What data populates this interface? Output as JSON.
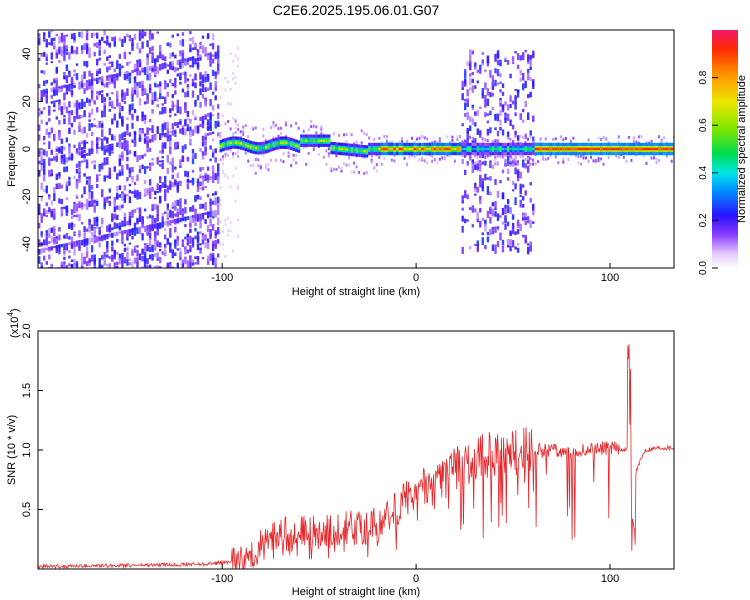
{
  "title": "C2E6.2025.195.06.01.G07",
  "chart_data": [
    {
      "type": "heatmap",
      "xlabel": "Height of straight line (km)",
      "ylabel": "Frequency (Hz)",
      "xlim": [
        -195,
        133
      ],
      "ylim": [
        -50,
        50
      ],
      "x_ticks": [
        -100,
        0,
        100
      ],
      "y_ticks": [
        -40,
        -20,
        0,
        20,
        40
      ],
      "colorbar": {
        "label": "Normalized spectral amplitude",
        "range": [
          0,
          1
        ],
        "ticks": [
          "0.0",
          "0.2",
          "0.4",
          "0.6",
          "0.8"
        ]
      },
      "regions": [
        {
          "x": [
            -195,
            -102
          ],
          "description_freq_spread": [
            -50,
            50
          ],
          "peak_amplitude": 0.25
        },
        {
          "x": [
            -102,
            -20
          ],
          "center_freq": 1,
          "peak_amplitude": 0.65
        },
        {
          "x": [
            -20,
            25
          ],
          "center_freq": 0,
          "peak_amplitude": 0.9
        },
        {
          "x": [
            23,
            60
          ],
          "description_freq_spread": [
            -42,
            40
          ],
          "peak_amplitude": 0.4
        },
        {
          "x": [
            60,
            133
          ],
          "center_freq": 0,
          "peak_amplitude": 0.95
        }
      ]
    },
    {
      "type": "line",
      "xlabel": "Height of straight line (km)",
      "ylabel": "SNR (10 * v/v)",
      "y_multiplier": "(x10",
      "y_multiplier_exp": "4",
      "y_multiplier_close": ")",
      "xlim": [
        -195,
        133
      ],
      "ylim": [
        0,
        2.0
      ],
      "x_ticks": [
        -100,
        0,
        100
      ],
      "y_ticks": [
        "0.5",
        "1.0",
        "1.5",
        "2.0"
      ],
      "series": [
        {
          "color": "#e8262a",
          "x": [
            -195,
            -150,
            -110,
            -95,
            -85,
            -80,
            -70,
            -60,
            -50,
            -40,
            -30,
            -20,
            -10,
            0,
            10,
            20,
            30,
            40,
            50,
            60,
            70,
            80,
            90,
            100,
            110,
            113,
            118,
            125,
            133
          ],
          "y": [
            0.02,
            0.03,
            0.04,
            0.06,
            0.1,
            0.2,
            0.3,
            0.32,
            0.3,
            0.33,
            0.35,
            0.38,
            0.5,
            0.68,
            0.75,
            0.85,
            0.92,
            0.97,
            0.98,
            1.0,
            1.0,
            0.98,
            1.0,
            1.02,
            1.0,
            0.8,
            1.0,
            1.02,
            1.02
          ]
        }
      ]
    }
  ]
}
